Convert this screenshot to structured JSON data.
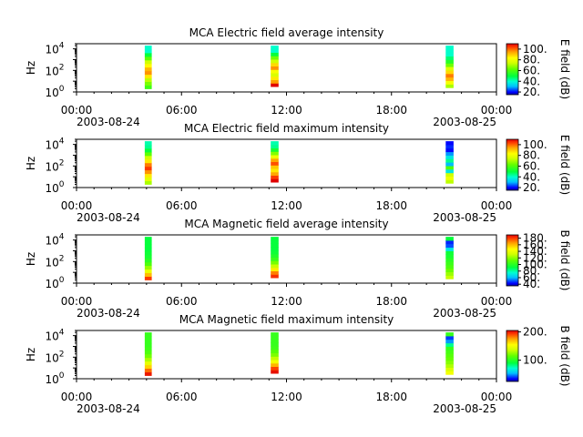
{
  "figure": {
    "background": "#ffffff",
    "time_axis": {
      "tick_labels": [
        "00:00",
        "06:00",
        "12:00",
        "18:00",
        "00:00"
      ],
      "tick_hours": [
        0,
        6,
        12,
        18,
        24
      ],
      "date_start": "2003-08-24",
      "date_end": "2003-08-25",
      "minor_every_hours": 1
    }
  },
  "chart_data": [
    {
      "type": "heatmap",
      "title": "MCA  Electric field average intensity",
      "ylabel": "Hz",
      "y_scale": "log",
      "ylim": [
        1,
        30000
      ],
      "y_ticks": [
        {
          "base": "10",
          "exp": "0"
        },
        {
          "base": "10",
          "exp": "2"
        },
        {
          "base": "10",
          "exp": "4"
        }
      ],
      "xlim_hours": [
        0,
        24
      ],
      "colorbar": {
        "label": "E field (dB)",
        "range": [
          15,
          110
        ],
        "ticks": [
          "20.",
          "40.",
          "60.",
          "80.",
          "100."
        ],
        "tick_values": [
          20,
          40,
          60,
          80,
          100
        ]
      },
      "passes": [
        {
          "start_hour": 3.9,
          "end_hour": 4.3,
          "profile": [
            3,
            58,
            65,
            72,
            86,
            96,
            92,
            84,
            74,
            62,
            50,
            40,
            40
          ]
        },
        {
          "start_hour": 11.1,
          "end_hour": 11.55,
          "profile": [
            5,
            110,
            95,
            86,
            76,
            82,
            96,
            88,
            74,
            64,
            50,
            40,
            40
          ]
        },
        {
          "start_hour": 21.1,
          "end_hour": 21.55,
          "profile": [
            4,
            70,
            82,
            92,
            98,
            88,
            76,
            64,
            54,
            46,
            40,
            40,
            40
          ]
        }
      ]
    },
    {
      "type": "heatmap",
      "title": "MCA  Electric field maximum intensity",
      "ylabel": "Hz",
      "y_scale": "log",
      "ylim": [
        1,
        30000
      ],
      "y_ticks": [
        {
          "base": "10",
          "exp": "0"
        },
        {
          "base": "10",
          "exp": "2"
        },
        {
          "base": "10",
          "exp": "4"
        }
      ],
      "xlim_hours": [
        0,
        24
      ],
      "colorbar": {
        "label": "E field (dB)",
        "range": [
          15,
          110
        ],
        "ticks": [
          "20.",
          "40.",
          "60.",
          "80.",
          "100."
        ],
        "tick_values": [
          20,
          40,
          60,
          80,
          100
        ]
      },
      "passes": [
        {
          "start_hour": 3.9,
          "end_hour": 4.3,
          "profile": [
            3,
            70,
            78,
            86,
            96,
            104,
            98,
            86,
            74,
            62,
            50,
            44,
            42
          ]
        },
        {
          "start_hour": 11.1,
          "end_hour": 11.55,
          "profile": [
            5,
            112,
            104,
            94,
            86,
            90,
            102,
            94,
            80,
            66,
            52,
            44,
            42
          ]
        },
        {
          "start_hour": 21.1,
          "end_hour": 21.55,
          "profile": [
            4,
            72,
            80,
            74,
            36,
            60,
            30,
            44,
            36,
            28,
            20,
            22,
            20
          ]
        }
      ]
    },
    {
      "type": "heatmap",
      "title": "MCA  Magnetic field average intensity",
      "ylabel": "Hz",
      "y_scale": "log",
      "ylim": [
        1,
        30000
      ],
      "y_ticks": [
        {
          "base": "10",
          "exp": "0"
        },
        {
          "base": "10",
          "exp": "2"
        },
        {
          "base": "10",
          "exp": "4"
        }
      ],
      "xlim_hours": [
        0,
        24
      ],
      "colorbar": {
        "label": "B field (dB)",
        "range": [
          35,
          190
        ],
        "ticks": [
          "40.",
          "60.",
          "80.",
          "100.",
          "120.",
          "140.",
          "160.",
          "180."
        ],
        "tick_values": [
          40,
          60,
          80,
          100,
          120,
          140,
          160,
          180
        ]
      },
      "passes": [
        {
          "start_hour": 3.9,
          "end_hour": 4.3,
          "profile": [
            3,
            180,
            160,
            140,
            122,
            108,
            100,
            96,
            94,
            92,
            92,
            92,
            92
          ]
        },
        {
          "start_hour": 11.1,
          "end_hour": 11.55,
          "profile": [
            5,
            182,
            170,
            150,
            130,
            116,
            104,
            98,
            94,
            92,
            92,
            92,
            92
          ]
        },
        {
          "start_hour": 21.1,
          "end_hour": 21.55,
          "profile": [
            4,
            130,
            122,
            114,
            108,
            104,
            100,
            96,
            94,
            70,
            50,
            46,
            92
          ]
        }
      ]
    },
    {
      "type": "heatmap",
      "title": "MCA  Magnetic field maximum intensity",
      "ylabel": "Hz",
      "y_scale": "log",
      "ylim": [
        1,
        30000
      ],
      "y_ticks": [
        {
          "base": "10",
          "exp": "0"
        },
        {
          "base": "10",
          "exp": "2"
        },
        {
          "base": "10",
          "exp": "4"
        }
      ],
      "xlim_hours": [
        0,
        24
      ],
      "colorbar": {
        "label": "B field (dB)",
        "range": [
          25,
          205
        ],
        "ticks": [
          "100.",
          "200."
        ],
        "tick_values": [
          100,
          200
        ]
      },
      "passes": [
        {
          "start_hour": 3.9,
          "end_hour": 4.3,
          "profile": [
            3,
            200,
            185,
            165,
            145,
            130,
            118,
            110,
            106,
            104,
            104,
            104,
            104
          ]
        },
        {
          "start_hour": 11.1,
          "end_hour": 11.55,
          "profile": [
            5,
            202,
            192,
            172,
            150,
            134,
            120,
            112,
            106,
            104,
            104,
            104,
            104
          ]
        },
        {
          "start_hour": 21.1,
          "end_hour": 21.55,
          "profile": [
            4,
            150,
            140,
            130,
            122,
            116,
            112,
            108,
            104,
            80,
            50,
            40,
            104
          ]
        }
      ]
    }
  ]
}
